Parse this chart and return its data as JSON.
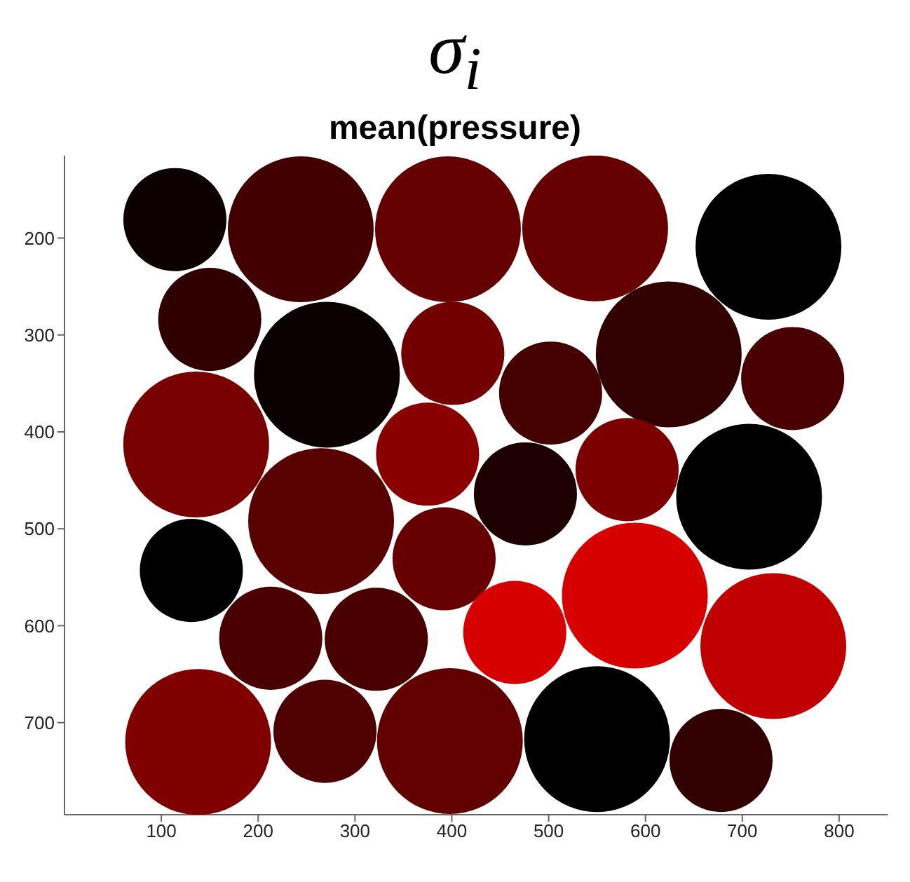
{
  "chart_data": {
    "type": "bubble",
    "title": "σ$_{i}$",
    "subtitle": "mean(pressure)",
    "x": [
      114,
      244,
      396,
      548,
      727,
      150,
      271,
      401,
      502,
      624,
      752,
      136,
      265,
      375,
      476,
      581,
      707,
      131,
      392,
      213,
      322,
      465,
      589,
      732,
      138,
      269,
      398,
      550,
      678
    ],
    "values": [
      181,
      191,
      191,
      190,
      209,
      284,
      341,
      319,
      360,
      320,
      345,
      413,
      492,
      423,
      464,
      439,
      467,
      543,
      531,
      613,
      614,
      607,
      569,
      621,
      720,
      709,
      719,
      717,
      739
    ],
    "sizes": [
      0.5,
      1,
      1,
      1,
      1,
      0.5,
      1,
      0.5,
      0.5,
      1,
      0.5,
      1,
      1,
      0.5,
      0.5,
      0.5,
      1,
      0.5,
      0.5,
      0.5,
      0.5,
      0.5,
      1,
      1,
      1,
      0.5,
      1,
      1,
      0.5
    ],
    "colors": [
      "#0d0000",
      "#430000",
      "#640000",
      "#660000",
      "#000000",
      "#300000",
      "#0a0000",
      "#720000",
      "#450000",
      "#330000",
      "#4a0000",
      "#780000",
      "#590000",
      "#8a0000",
      "#1f0000",
      "#7d0000",
      "#000000",
      "#000000",
      "#660000",
      "#4a0000",
      "#4a0000",
      "#d60000",
      "#d60000",
      "#c00000",
      "#800000",
      "#4f0000",
      "#620000",
      "#000000",
      "#330000"
    ],
    "xlim": [
      0,
      850
    ],
    "ylim": [
      795,
      115
    ],
    "xticks": [
      100,
      200,
      300,
      400,
      500,
      600,
      700,
      800
    ],
    "yticks": [
      200,
      300,
      400,
      500,
      600,
      700
    ]
  }
}
